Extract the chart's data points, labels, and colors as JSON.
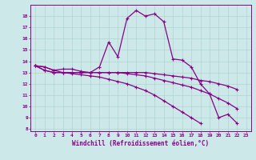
{
  "xlabel": "Windchill (Refroidissement éolien,°C)",
  "background_color": "#cce8e8",
  "grid_color": "#b0d4cc",
  "line_color": "#880088",
  "hours": [
    0,
    1,
    2,
    3,
    4,
    5,
    6,
    7,
    8,
    9,
    10,
    11,
    12,
    13,
    14,
    15,
    16,
    17,
    18,
    19,
    20,
    21,
    22,
    23
  ],
  "series1": [
    13.6,
    13.5,
    13.2,
    13.3,
    13.3,
    13.1,
    13.0,
    13.5,
    15.7,
    14.4,
    17.8,
    18.5,
    18.0,
    18.2,
    17.5,
    14.2,
    14.1,
    13.5,
    12.0,
    11.1,
    9.0,
    9.3,
    8.5,
    null
  ],
  "series2": [
    13.6,
    13.5,
    13.2,
    13.0,
    13.0,
    13.0,
    13.0,
    13.0,
    13.0,
    13.0,
    13.0,
    13.0,
    13.0,
    12.9,
    12.8,
    12.7,
    12.6,
    12.5,
    12.3,
    12.2,
    12.0,
    11.8,
    11.5,
    null
  ],
  "series3": [
    13.6,
    13.2,
    13.0,
    13.0,
    13.0,
    13.0,
    13.0,
    13.0,
    13.0,
    13.0,
    12.9,
    12.8,
    12.7,
    12.5,
    12.3,
    12.1,
    11.9,
    11.7,
    11.4,
    11.1,
    10.7,
    10.3,
    9.8,
    null
  ],
  "series4": [
    13.6,
    13.2,
    13.0,
    13.0,
    12.9,
    12.8,
    12.7,
    12.6,
    12.4,
    12.2,
    12.0,
    11.7,
    11.4,
    11.0,
    10.5,
    10.0,
    9.5,
    9.0,
    8.5,
    null,
    null,
    null,
    null,
    null
  ],
  "ylim": [
    8,
    19
  ],
  "yticks": [
    8,
    9,
    10,
    11,
    12,
    13,
    14,
    15,
    16,
    17,
    18
  ],
  "xlim": [
    0,
    23
  ]
}
